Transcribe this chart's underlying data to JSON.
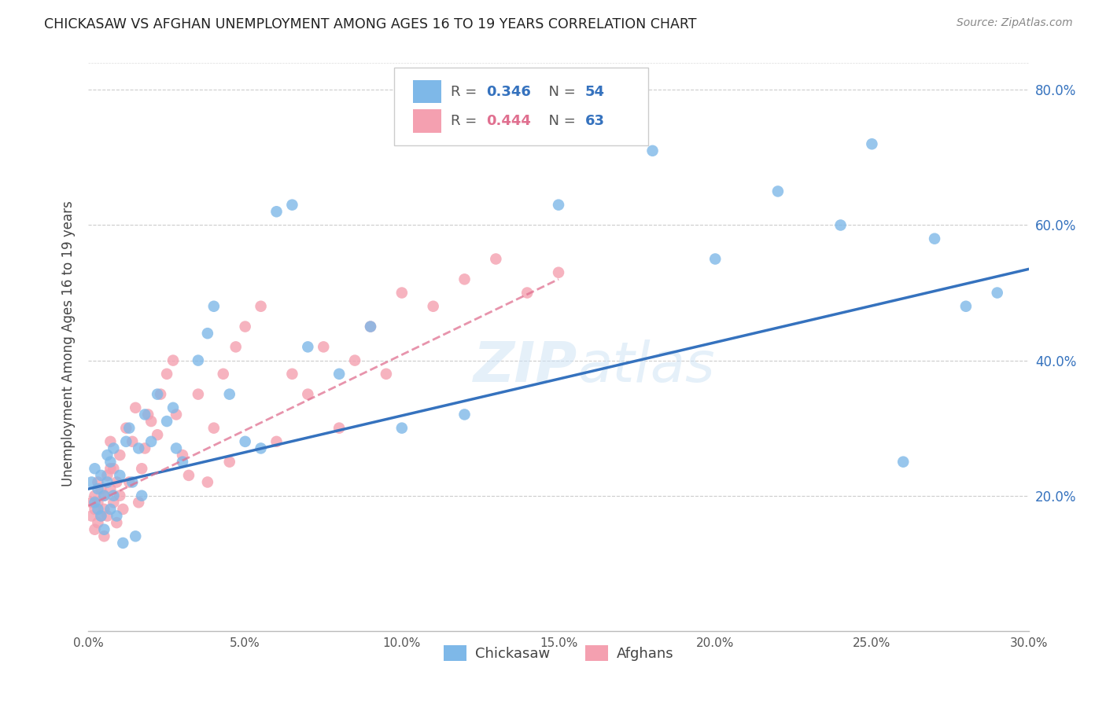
{
  "title": "CHICKASAW VS AFGHAN UNEMPLOYMENT AMONG AGES 16 TO 19 YEARS CORRELATION CHART",
  "source": "Source: ZipAtlas.com",
  "ylabel": "Unemployment Among Ages 16 to 19 years",
  "xlim": [
    0,
    0.3
  ],
  "ylim": [
    0,
    0.85
  ],
  "legend_r_blue": "0.346",
  "legend_n_blue": "54",
  "legend_r_pink": "0.444",
  "legend_n_pink": "63",
  "chickasaw_color": "#7EB8E8",
  "afghan_color": "#F4A0B0",
  "trend_blue_color": "#3572BE",
  "trend_pink_color": "#E07090",
  "watermark": "ZIPatlas",
  "chickasaw_x": [
    0.001,
    0.002,
    0.002,
    0.003,
    0.003,
    0.004,
    0.004,
    0.005,
    0.005,
    0.006,
    0.006,
    0.007,
    0.007,
    0.008,
    0.008,
    0.009,
    0.01,
    0.011,
    0.012,
    0.013,
    0.014,
    0.015,
    0.016,
    0.017,
    0.018,
    0.02,
    0.022,
    0.025,
    0.027,
    0.028,
    0.03,
    0.035,
    0.038,
    0.04,
    0.045,
    0.05,
    0.055,
    0.06,
    0.065,
    0.07,
    0.08,
    0.09,
    0.1,
    0.12,
    0.15,
    0.18,
    0.2,
    0.22,
    0.24,
    0.25,
    0.26,
    0.27,
    0.28,
    0.29
  ],
  "chickasaw_y": [
    0.22,
    0.19,
    0.24,
    0.18,
    0.21,
    0.23,
    0.17,
    0.2,
    0.15,
    0.26,
    0.22,
    0.18,
    0.25,
    0.2,
    0.27,
    0.17,
    0.23,
    0.13,
    0.28,
    0.3,
    0.22,
    0.14,
    0.27,
    0.2,
    0.32,
    0.28,
    0.35,
    0.31,
    0.33,
    0.27,
    0.25,
    0.4,
    0.44,
    0.48,
    0.35,
    0.28,
    0.27,
    0.62,
    0.63,
    0.42,
    0.38,
    0.45,
    0.3,
    0.32,
    0.63,
    0.71,
    0.55,
    0.65,
    0.6,
    0.72,
    0.25,
    0.58,
    0.48,
    0.5
  ],
  "afghan_x": [
    0.001,
    0.001,
    0.002,
    0.002,
    0.002,
    0.003,
    0.003,
    0.003,
    0.004,
    0.004,
    0.005,
    0.005,
    0.005,
    0.006,
    0.006,
    0.007,
    0.007,
    0.007,
    0.008,
    0.008,
    0.009,
    0.009,
    0.01,
    0.01,
    0.011,
    0.012,
    0.013,
    0.014,
    0.015,
    0.016,
    0.017,
    0.018,
    0.019,
    0.02,
    0.022,
    0.023,
    0.025,
    0.027,
    0.028,
    0.03,
    0.032,
    0.035,
    0.038,
    0.04,
    0.043,
    0.045,
    0.047,
    0.05,
    0.055,
    0.06,
    0.065,
    0.07,
    0.075,
    0.08,
    0.085,
    0.09,
    0.095,
    0.1,
    0.11,
    0.12,
    0.13,
    0.14,
    0.15
  ],
  "afghan_y": [
    0.17,
    0.19,
    0.15,
    0.18,
    0.2,
    0.16,
    0.19,
    0.22,
    0.17,
    0.21,
    0.18,
    0.2,
    0.14,
    0.23,
    0.17,
    0.21,
    0.28,
    0.24,
    0.19,
    0.24,
    0.16,
    0.22,
    0.2,
    0.26,
    0.18,
    0.3,
    0.22,
    0.28,
    0.33,
    0.19,
    0.24,
    0.27,
    0.32,
    0.31,
    0.29,
    0.35,
    0.38,
    0.4,
    0.32,
    0.26,
    0.23,
    0.35,
    0.22,
    0.3,
    0.38,
    0.25,
    0.42,
    0.45,
    0.48,
    0.28,
    0.38,
    0.35,
    0.42,
    0.3,
    0.4,
    0.45,
    0.38,
    0.5,
    0.48,
    0.52,
    0.55,
    0.5,
    0.53
  ],
  "trend_blue_x0": 0.0,
  "trend_blue_y0": 0.21,
  "trend_blue_x1": 0.3,
  "trend_blue_y1": 0.535,
  "trend_pink_x0": 0.0,
  "trend_pink_y0": 0.185,
  "trend_pink_x1": 0.15,
  "trend_pink_y1": 0.52
}
